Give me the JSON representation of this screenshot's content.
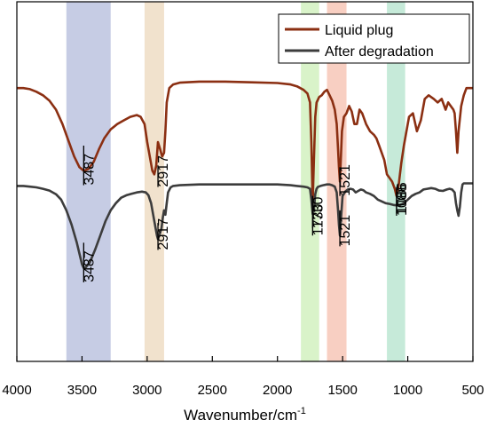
{
  "chart_data": {
    "type": "line",
    "xlabel_main": "Wavenumber/cm",
    "xlabel_sup": "-1",
    "ylabel": "",
    "xlim": [
      4000,
      500
    ],
    "x_reversed": true,
    "grid": false,
    "legend_position": "top-right",
    "xticks": [
      4000,
      3500,
      3000,
      2500,
      2000,
      1500,
      1000,
      500
    ],
    "xtick_labels": [
      "4000",
      "3500",
      "3000",
      "2500",
      "2000",
      "1500",
      "1000",
      "500"
    ],
    "bands": [
      {
        "from": 3620,
        "to": 3280,
        "color": "#c6cce4"
      },
      {
        "from": 3020,
        "to": 2870,
        "color": "#f1e2cd"
      },
      {
        "from": 1820,
        "to": 1680,
        "color": "#d9f3c9"
      },
      {
        "from": 1620,
        "to": 1470,
        "color": "#f8cfc2"
      },
      {
        "from": 1160,
        "to": 1020,
        "color": "#c6ead9"
      }
    ],
    "series": [
      {
        "name": "Liquid plug",
        "color": "#8b2f12",
        "x": [
          4000,
          3950,
          3900,
          3850,
          3800,
          3750,
          3700,
          3650,
          3600,
          3560,
          3520,
          3487,
          3450,
          3410,
          3370,
          3330,
          3280,
          3230,
          3180,
          3130,
          3080,
          3050,
          3020,
          3000,
          2980,
          2960,
          2945,
          2930,
          2917,
          2900,
          2885,
          2870,
          2860,
          2850,
          2830,
          2800,
          2750,
          2600,
          2400,
          2200,
          2000,
          1900,
          1850,
          1800,
          1770,
          1750,
          1740,
          1730,
          1720,
          1710,
          1700,
          1680,
          1660,
          1640,
          1620,
          1600,
          1580,
          1560,
          1545,
          1535,
          1528,
          1521,
          1514,
          1505,
          1490,
          1470,
          1450,
          1430,
          1410,
          1390,
          1370,
          1350,
          1320,
          1290,
          1260,
          1240,
          1220,
          1200,
          1180,
          1160,
          1140,
          1120,
          1100,
          1086,
          1070,
          1050,
          1030,
          1010,
          990,
          960,
          930,
          900,
          870,
          840,
          800,
          770,
          740,
          710,
          690,
          670,
          650,
          640,
          630,
          620,
          610,
          590,
          570,
          550,
          520,
          500
        ],
        "y": [
          0.76,
          0.76,
          0.757,
          0.75,
          0.74,
          0.725,
          0.7,
          0.66,
          0.61,
          0.57,
          0.54,
          0.53,
          0.535,
          0.555,
          0.59,
          0.62,
          0.645,
          0.66,
          0.67,
          0.68,
          0.685,
          0.68,
          0.66,
          0.61,
          0.57,
          0.53,
          0.52,
          0.545,
          0.61,
          0.59,
          0.57,
          0.58,
          0.64,
          0.72,
          0.76,
          0.77,
          0.775,
          0.778,
          0.778,
          0.776,
          0.774,
          0.77,
          0.765,
          0.755,
          0.745,
          0.72,
          0.61,
          0.44,
          0.56,
          0.68,
          0.72,
          0.735,
          0.74,
          0.75,
          0.755,
          0.74,
          0.725,
          0.7,
          0.66,
          0.59,
          0.54,
          0.5,
          0.56,
          0.64,
          0.68,
          0.69,
          0.71,
          0.695,
          0.66,
          0.66,
          0.7,
          0.69,
          0.66,
          0.64,
          0.63,
          0.62,
          0.6,
          0.58,
          0.56,
          0.52,
          0.51,
          0.5,
          0.48,
          0.46,
          0.49,
          0.55,
          0.6,
          0.64,
          0.68,
          0.69,
          0.64,
          0.67,
          0.73,
          0.74,
          0.73,
          0.72,
          0.73,
          0.7,
          0.72,
          0.71,
          0.7,
          0.69,
          0.64,
          0.58,
          0.64,
          0.71,
          0.74,
          0.76,
          0.76,
          0.76
        ]
      },
      {
        "name": "After degradation",
        "color": "#3c3c3c",
        "x": [
          4000,
          3950,
          3900,
          3850,
          3800,
          3750,
          3700,
          3660,
          3620,
          3580,
          3540,
          3500,
          3487,
          3470,
          3440,
          3400,
          3360,
          3320,
          3280,
          3240,
          3200,
          3160,
          3120,
          3080,
          3040,
          3010,
          2990,
          2970,
          2950,
          2935,
          2925,
          2917,
          2905,
          2890,
          2880,
          2870,
          2860,
          2850,
          2840,
          2820,
          2800,
          2750,
          2600,
          2400,
          2200,
          2000,
          1900,
          1850,
          1800,
          1770,
          1750,
          1740,
          1730,
          1720,
          1710,
          1700,
          1690,
          1670,
          1650,
          1620,
          1600,
          1580,
          1560,
          1545,
          1535,
          1528,
          1521,
          1512,
          1500,
          1480,
          1460,
          1440,
          1420,
          1400,
          1380,
          1360,
          1340,
          1320,
          1290,
          1260,
          1230,
          1200,
          1170,
          1140,
          1110,
          1086,
          1060,
          1030,
          1000,
          970,
          940,
          910,
          880,
          850,
          820,
          790,
          760,
          730,
          700,
          680,
          660,
          640,
          630,
          620,
          610,
          600,
          590,
          580,
          570,
          550,
          520,
          500
        ],
        "y": [
          0.488,
          0.488,
          0.486,
          0.484,
          0.48,
          0.475,
          0.465,
          0.45,
          0.42,
          0.38,
          0.33,
          0.27,
          0.26,
          0.262,
          0.275,
          0.31,
          0.35,
          0.39,
          0.42,
          0.44,
          0.455,
          0.462,
          0.466,
          0.47,
          0.472,
          0.47,
          0.462,
          0.44,
          0.4,
          0.37,
          0.35,
          0.34,
          0.352,
          0.37,
          0.4,
          0.42,
          0.408,
          0.44,
          0.47,
          0.484,
          0.488,
          0.49,
          0.492,
          0.492,
          0.492,
          0.492,
          0.49,
          0.488,
          0.486,
          0.484,
          0.48,
          0.45,
          0.41,
          0.42,
          0.465,
          0.48,
          0.485,
          0.488,
          0.49,
          0.492,
          0.492,
          0.49,
          0.486,
          0.47,
          0.42,
          0.38,
          0.35,
          0.4,
          0.46,
          0.472,
          0.478,
          0.48,
          0.478,
          0.47,
          0.474,
          0.478,
          0.476,
          0.47,
          0.466,
          0.46,
          0.45,
          0.445,
          0.44,
          0.438,
          0.435,
          0.434,
          0.435,
          0.44,
          0.45,
          0.46,
          0.466,
          0.47,
          0.478,
          0.48,
          0.482,
          0.48,
          0.475,
          0.474,
          0.478,
          0.48,
          0.478,
          0.47,
          0.44,
          0.42,
          0.405,
          0.43,
          0.47,
          0.492,
          0.495,
          0.495,
          0.495,
          0.495
        ]
      }
    ],
    "annotations": [
      {
        "label": "3487",
        "series": 0,
        "x": 3487,
        "y_top": 0.6,
        "y_bot": 0.49
      },
      {
        "label": "2917",
        "series": 0,
        "x": 2917,
        "y_top": 0.545,
        "y_bot": 0.485
      },
      {
        "label": "1730",
        "series": 0,
        "x": 1730,
        "y_top": 0.46,
        "y_bot": 0.35
      },
      {
        "label": "1521",
        "series": 0,
        "x": 1521,
        "y_top": 0.54,
        "y_bot": 0.46
      },
      {
        "label": "1086",
        "series": 0,
        "x": 1086,
        "y_top": 0.48,
        "y_bot": 0.41
      },
      {
        "label": "3487",
        "series": 1,
        "x": 3487,
        "y_top": 0.33,
        "y_bot": 0.22
      },
      {
        "label": "2917",
        "series": 1,
        "x": 2917,
        "y_top": 0.385,
        "y_bot": 0.31
      },
      {
        "label": "1730",
        "series": 1,
        "x": 1730,
        "y_top": 0.46,
        "y_bot": 0.37
      },
      {
        "label": "1521",
        "series": 1,
        "x": 1521,
        "y_top": 0.42,
        "y_bot": 0.32
      },
      {
        "label": "1086",
        "series": 1,
        "x": 1086,
        "y_top": 0.485,
        "y_bot": 0.405
      }
    ]
  }
}
